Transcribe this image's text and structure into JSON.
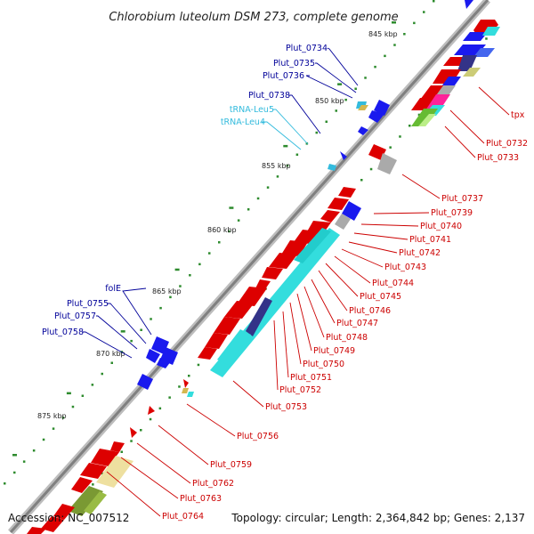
{
  "title": "Chlorobium luteolum DSM 273, complete genome",
  "footer": {
    "accession": "Accession: NC_007512",
    "topology": "Topology: circular; Length: 2,364,842 bp; Genes: 2,137"
  },
  "scale_labels": [
    "845 kbp",
    "850 kbp",
    "855 kbp",
    "860 kbp",
    "865 kbp",
    "870 kbp",
    "875 kbp"
  ],
  "colors": {
    "backbone": "#8c8c8c",
    "cds_forward_label": "#cc0000",
    "cds_reverse_label": "#000099",
    "trna_label": "#33bbdd",
    "tick": "#228822"
  },
  "right_labels": [
    "tpx",
    "Plut_0732",
    "Plut_0733",
    "Plut_0737",
    "Plut_0739",
    "Plut_0740",
    "Plut_0741",
    "Plut_0742",
    "Plut_0743",
    "Plut_0744",
    "Plut_0745",
    "Plut_0746",
    "Plut_0747",
    "Plut_0748",
    "Plut_0749",
    "Plut_0750",
    "Plut_0751",
    "Plut_0752",
    "Plut_0753",
    "Plut_0756",
    "Plut_0759",
    "Plut_0762",
    "Plut_0763",
    "Plut_0764"
  ],
  "left_labels": [
    "Plut_0734",
    "Plut_0735",
    "Plut_0736",
    "Plut_0738",
    "tRNA-Leu5",
    "tRNA-Leu4",
    "folE",
    "Plut_0755",
    "Plut_0757",
    "Plut_0758"
  ]
}
